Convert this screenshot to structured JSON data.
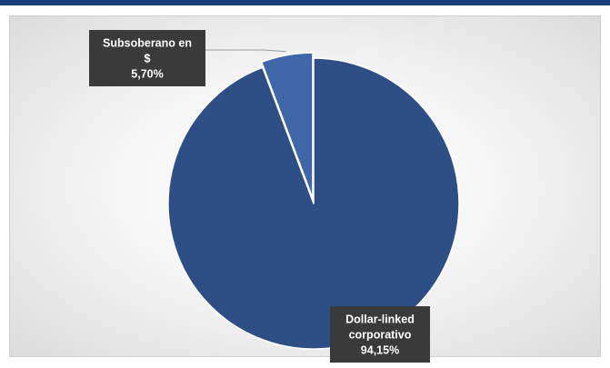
{
  "chart_data": {
    "type": "pie",
    "title": "",
    "slices": [
      {
        "name": "Dollar-linked corporativo",
        "label_lines": [
          "Dollar-linked",
          "corporativo"
        ],
        "percent_label": "94,15%",
        "value": 94.15,
        "color": "#2e4f86"
      },
      {
        "name": "Subsoberano en $",
        "label_lines": [
          "Subsoberano en",
          "$"
        ],
        "percent_label": "5,70%",
        "value": 5.7,
        "color": "#3f66a8"
      }
    ],
    "legend": "none",
    "label_box_color": "#3a3a3a",
    "slice_border_color": "#ffffff"
  }
}
